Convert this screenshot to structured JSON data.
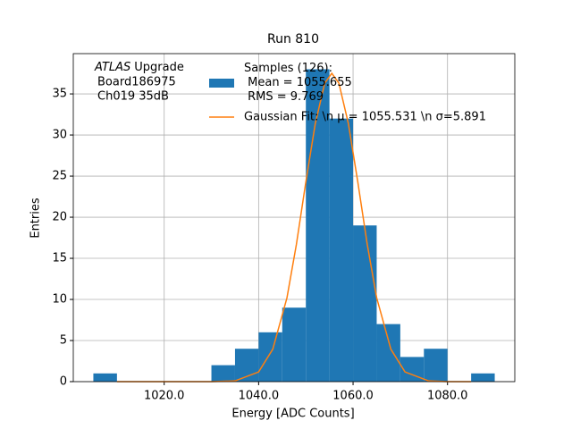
{
  "chart_data": {
    "type": "histogram",
    "title": "Run 810",
    "xlabel": "Energy [ADC Counts]",
    "ylabel": "Entries",
    "annotation": {
      "italic": "ATLAS",
      "text": [
        "Upgrade",
        "Board186975",
        "Ch019 35dB"
      ]
    },
    "name": "Samples (126):\n Mean = 1055.655\n RMS = 9.769",
    "color": "#1f77b4",
    "bins": [
      1005,
      1010,
      1015,
      1020,
      1025,
      1030,
      1035,
      1040,
      1045,
      1050,
      1055,
      1060,
      1065,
      1070,
      1075,
      1080,
      1085,
      1090
    ],
    "values": [
      1,
      0,
      0,
      0,
      0,
      2,
      4,
      6,
      9,
      38,
      32,
      19,
      7,
      3,
      4,
      0,
      1
    ],
    "fit": {
      "type": "line",
      "name": "Gaussian Fit: \\n μ = 1055.531 \\n σ=5.891",
      "color": "#ff7f0e",
      "x": [
        1010,
        1020,
        1030,
        1035,
        1040,
        1043,
        1046,
        1048,
        1050,
        1052,
        1054,
        1055.5,
        1057,
        1059,
        1061,
        1063,
        1065,
        1068,
        1071,
        1076,
        1080,
        1085
      ],
      "values": [
        0,
        0,
        0.003,
        0.09,
        1.18,
        3.95,
        10.2,
        16.7,
        24.3,
        31.4,
        36.3,
        37.5,
        36.3,
        31.4,
        24.3,
        16.7,
        10.2,
        3.95,
        1.18,
        0.09,
        0.006,
        0
      ]
    },
    "xlim": [
      1000.75,
      1094.25
    ],
    "ylim": [
      0,
      39.9
    ],
    "xticks": [
      {
        "value": 1020,
        "label": "1020.0"
      },
      {
        "value": 1040,
        "label": "1040.0"
      },
      {
        "value": 1060,
        "label": "1060.0"
      },
      {
        "value": 1080,
        "label": "1080.0"
      }
    ],
    "yticks": [
      0,
      5,
      10,
      15,
      20,
      25,
      30,
      35
    ],
    "grid": true
  }
}
